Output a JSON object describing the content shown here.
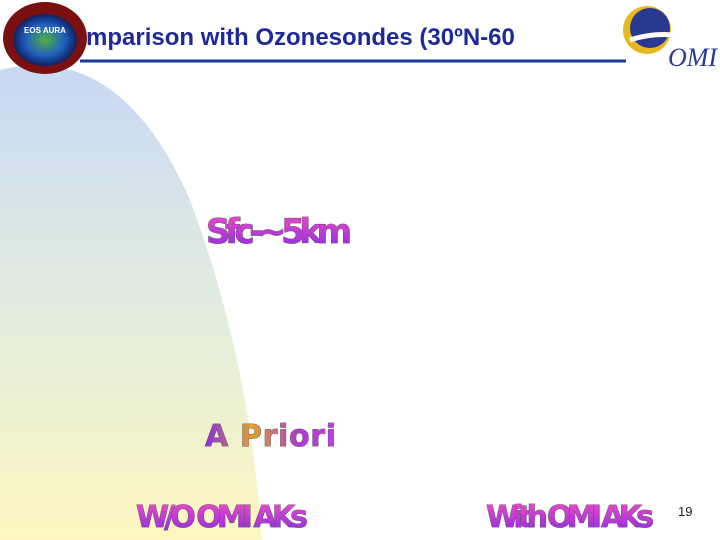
{
  "header": {
    "title": "mparison with Ozonesondes (30ºN-60",
    "left_logo": "EOS AURA",
    "right_logo": "OMI"
  },
  "labels": {
    "layer": "Sfc-~5km",
    "a_priori": "A Priori",
    "without_aks": "W/O OMI AKs",
    "with_aks": "With OMI AKs"
  },
  "page_number": 19
}
